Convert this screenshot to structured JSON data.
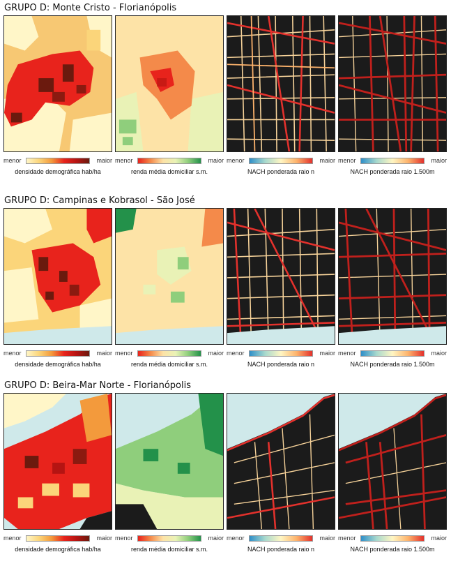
{
  "groups": [
    {
      "title": "GRUPO D: Monte Cristo - Florianópolis",
      "panels": [
        {
          "kind": "density",
          "legend": {
            "min": "menor",
            "max": "maior",
            "caption": "densidade demográfica hab/ha"
          }
        },
        {
          "kind": "income",
          "legend": {
            "min": "menor",
            "max": "maior",
            "caption": "renda média domiciliar s.m."
          }
        },
        {
          "kind": "nach",
          "legend": {
            "min": "menor",
            "max": "maior",
            "caption": "NACH ponderada raio n"
          }
        },
        {
          "kind": "nach",
          "legend": {
            "min": "menor",
            "max": "maior",
            "caption": "NACH ponderada raio 1.500m"
          }
        }
      ]
    },
    {
      "title": "GRUPO D: Campinas e Kobrasol - São José",
      "panels": [
        {
          "kind": "density",
          "legend": {
            "min": "menor",
            "max": "maior",
            "caption": "densidade demográfica hab/ha"
          }
        },
        {
          "kind": "income",
          "legend": {
            "min": "menor",
            "max": "maior",
            "caption": "renda média domiciliar s.m."
          }
        },
        {
          "kind": "nach",
          "legend": {
            "min": "menor",
            "max": "maior",
            "caption": "NACH ponderada raio n"
          }
        },
        {
          "kind": "nach",
          "legend": {
            "min": "menor",
            "max": "maior",
            "caption": "NACH ponderada raio 1.500m"
          }
        }
      ]
    },
    {
      "title": "GRUPO D: Beira-Mar Norte - Florianópolis",
      "panels": [
        {
          "kind": "density",
          "legend": {
            "min": "menor",
            "max": "maior",
            "caption": "densidade demográfica hab/ha"
          }
        },
        {
          "kind": "income",
          "legend": {
            "min": "menor",
            "max": "maior",
            "caption": "renda média domiciliar s.m."
          }
        },
        {
          "kind": "nach",
          "legend": {
            "min": "menor",
            "max": "maior",
            "caption": "NACH ponderada raio n"
          }
        },
        {
          "kind": "nach",
          "legend": {
            "min": "menor",
            "max": "maior",
            "caption": "NACH ponderada raio 1.500m"
          }
        }
      ]
    }
  ],
  "palettes": {
    "density": [
      "#fff6c8",
      "#fbd57a",
      "#f39a3c",
      "#e8231c",
      "#b51412",
      "#6b1a0e"
    ],
    "income": [
      "#e8231c",
      "#f48a4a",
      "#fde3a7",
      "#e9f2b6",
      "#8fce7c",
      "#23914a"
    ],
    "nach": [
      "#2f8fc8",
      "#a8d9cd",
      "#fff6c3",
      "#fdb36c",
      "#e3312c",
      "#9a1010"
    ],
    "water": "#cfe9ea",
    "street_bg": "#1b1b1b"
  }
}
